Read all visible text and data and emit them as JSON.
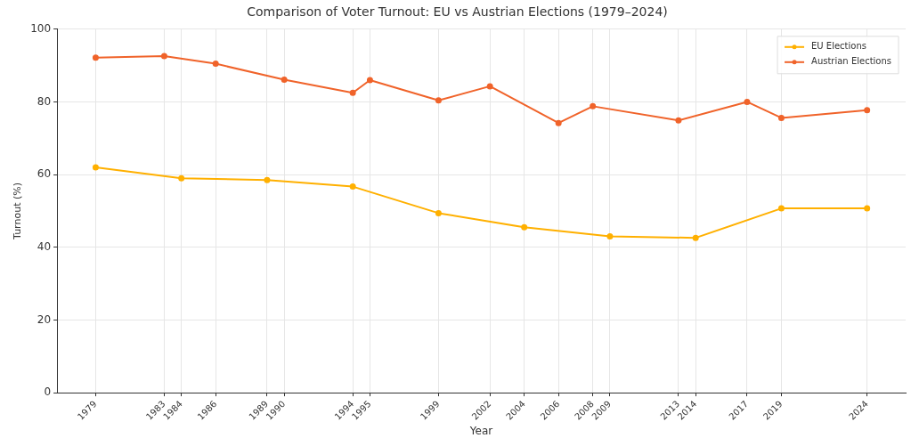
{
  "chart_data": {
    "type": "line",
    "title": "Comparison of Voter Turnout: EU vs Austrian Elections (1979–2024)",
    "xlabel": "Year",
    "ylabel": "Turnout (%)",
    "series": [
      {
        "name": "EU Elections",
        "color": "#ffb000",
        "x": [
          1979,
          1984,
          1989,
          1994,
          1999,
          2004,
          2009,
          2014,
          2019,
          2024
        ],
        "values": [
          62,
          59,
          58.5,
          56.7,
          49.4,
          45.5,
          43,
          42.6,
          50.7,
          50.7
        ]
      },
      {
        "name": "Austrian Elections",
        "color": "#f0632a",
        "x": [
          1979,
          1983,
          1986,
          1990,
          1994,
          1995,
          1999,
          2002,
          2006,
          2008,
          2013,
          2017,
          2019,
          2024
        ],
        "values": [
          92.2,
          92.6,
          90.5,
          86.1,
          82.5,
          86,
          80.4,
          84.3,
          74.2,
          78.8,
          74.9,
          80,
          75.6,
          77.7
        ]
      }
    ],
    "xlim": [
      1976.75,
      2026.25
    ],
    "xticks": [
      1979,
      1983,
      1984,
      1986,
      1989,
      1990,
      1994,
      1995,
      1999,
      2002,
      2004,
      2006,
      2008,
      2009,
      2013,
      2014,
      2017,
      2019,
      2024
    ],
    "ylim": [
      0,
      100
    ],
    "yticks": [
      0,
      20,
      40,
      60,
      80,
      100
    ],
    "grid": true,
    "legend": "top right",
    "marker": "circle",
    "line_style": "solid"
  }
}
